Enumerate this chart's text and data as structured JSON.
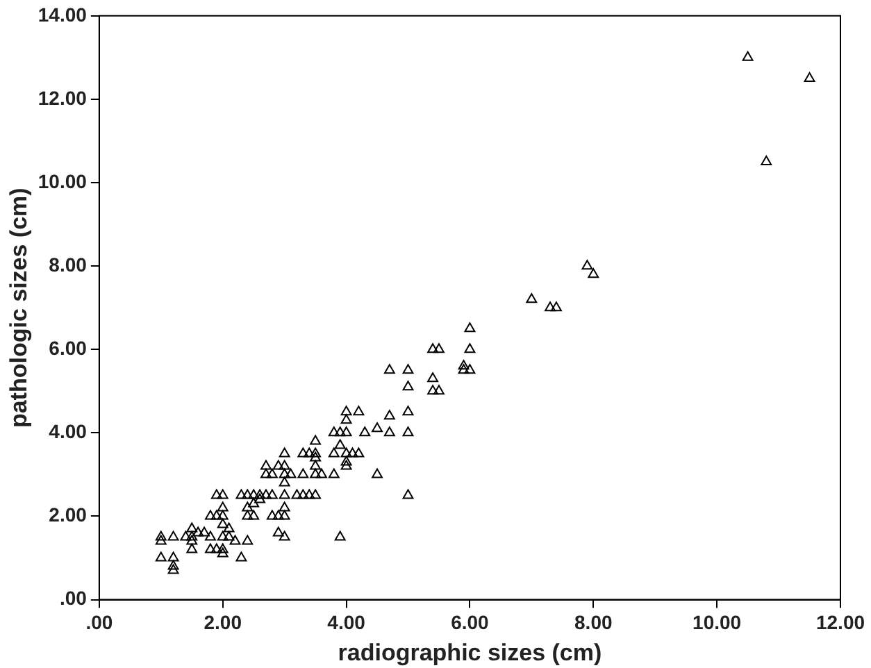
{
  "chart_data": {
    "type": "scatter",
    "xlabel": "radiographic sizes (cm)",
    "ylabel": "pathologic sizes (cm)",
    "marker": "triangle",
    "grid": false,
    "legend": false,
    "xlim": [
      0,
      12
    ],
    "ylim": [
      0,
      14
    ],
    "xticks": [
      {
        "value": 0,
        "label": ".00"
      },
      {
        "value": 2,
        "label": "2.00"
      },
      {
        "value": 4,
        "label": "4.00"
      },
      {
        "value": 6,
        "label": "6.00"
      },
      {
        "value": 8,
        "label": "8.00"
      },
      {
        "value": 10,
        "label": "10.00"
      },
      {
        "value": 12,
        "label": "12.00"
      }
    ],
    "yticks": [
      {
        "value": 0,
        "label": ".00"
      },
      {
        "value": 2,
        "label": "2.00"
      },
      {
        "value": 4,
        "label": "4.00"
      },
      {
        "value": 6,
        "label": "6.00"
      },
      {
        "value": 8,
        "label": "8.00"
      },
      {
        "value": 10,
        "label": "10.00"
      },
      {
        "value": 12,
        "label": "12.00"
      },
      {
        "value": 14,
        "label": "14.00"
      }
    ],
    "series": [
      {
        "color": "#000000",
        "x": [
          1,
          1,
          1,
          1.2,
          1.2,
          1.2,
          1.2,
          1.4,
          1.5,
          1.5,
          1.5,
          1.5,
          1.6,
          1.7,
          1.8,
          1.8,
          1.8,
          1.9,
          1.9,
          1.9,
          2,
          2,
          2,
          2,
          2,
          2,
          2,
          2.1,
          2.1,
          2.2,
          2.3,
          2.3,
          2.4,
          2.4,
          2.4,
          2.4,
          2.5,
          2.5,
          2.5,
          2.6,
          2.6,
          2.7,
          2.7,
          2.7,
          2.8,
          2.8,
          2.8,
          2.9,
          2.9,
          2.9,
          3,
          3,
          3,
          3,
          3,
          3,
          3,
          3,
          3.1,
          3.2,
          3.3,
          3.3,
          3.3,
          3.4,
          3.4,
          3.5,
          3.5,
          3.5,
          3.5,
          3.5,
          3.5,
          3.6,
          3.8,
          3.8,
          3.8,
          3.9,
          3.9,
          3.9,
          4,
          4,
          4,
          4,
          4,
          4,
          4.1,
          4.2,
          4.2,
          4.3,
          4.5,
          4.5,
          4.7,
          4.7,
          4.7,
          5,
          5,
          5,
          5,
          5,
          5.4,
          5.4,
          5.4,
          5.5,
          5.5,
          5.9,
          5.9,
          6,
          6,
          6,
          7,
          7.3,
          7.4,
          7.9,
          8,
          10.5,
          10.8,
          11.5
        ],
        "values": [
          1.5,
          1.4,
          1,
          1,
          0.8,
          0.7,
          1.5,
          1.5,
          1.7,
          1.5,
          1.4,
          1.2,
          1.6,
          1.6,
          1.5,
          1.2,
          2,
          2.5,
          2,
          1.2,
          2.5,
          2.2,
          2,
          1.8,
          1.5,
          1.2,
          1.1,
          1.7,
          1.5,
          1.4,
          1,
          2.5,
          1.4,
          2.5,
          2.2,
          2,
          2.5,
          2.3,
          2,
          2.5,
          2.4,
          2.5,
          3.2,
          3,
          2.5,
          3,
          2,
          3.2,
          2,
          1.6,
          3.5,
          3.2,
          3,
          2.8,
          2.5,
          2.2,
          2,
          1.5,
          3,
          2.5,
          3,
          3.5,
          2.5,
          3.5,
          2.5,
          3.8,
          3.5,
          3.4,
          3.2,
          3,
          2.5,
          3,
          4,
          3.5,
          3,
          3.7,
          4,
          1.5,
          4.5,
          4.3,
          4,
          3.5,
          3.3,
          3.2,
          3.5,
          4.5,
          3.5,
          4,
          4.1,
          3,
          5.5,
          4.4,
          4,
          5.5,
          5.1,
          4.5,
          4,
          2.5,
          6,
          5.3,
          5,
          6,
          5,
          5.6,
          5.5,
          6.5,
          6,
          5.5,
          7.2,
          7,
          7,
          8,
          7.8,
          13,
          10.5,
          12.5
        ]
      }
    ]
  }
}
